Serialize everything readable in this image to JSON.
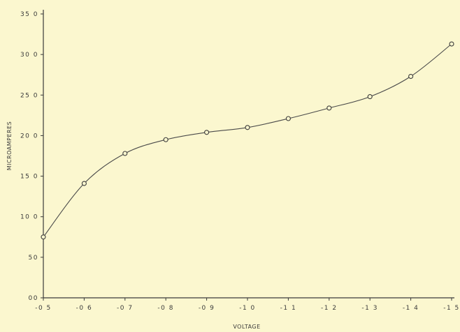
{
  "chart_data": {
    "type": "line",
    "xlabel": "VOLTAGE",
    "ylabel": "MICROAMPERES",
    "xlim": [
      -0.5,
      -1.5
    ],
    "ylim": [
      0,
      350
    ],
    "x_ticks": [
      -0.5,
      -0.6,
      -0.7,
      -0.8,
      -0.9,
      -1.0,
      -1.1,
      -1.2,
      -1.3,
      -1.4,
      -1.5
    ],
    "x_tick_labels": [
      "-0 5",
      "-0 6",
      "-0 7",
      "-0 8",
      "-0 9",
      "-1 0",
      "-1 1",
      "-1 2",
      "-1 3",
      "-1 4",
      "-1 5"
    ],
    "y_ticks": [
      0,
      50,
      100,
      150,
      200,
      250,
      300,
      350
    ],
    "y_tick_labels": [
      "00",
      "50",
      "10 0",
      "15 0",
      "20 0",
      "25 0",
      "30 0",
      "35 0"
    ],
    "grid": false,
    "series": [
      {
        "x": [
          -0.5,
          -0.6,
          -0.7,
          -0.8,
          -0.9,
          -1.0,
          -1.1,
          -1.2,
          -1.3,
          -1.4,
          -1.5
        ],
        "y": [
          75,
          141,
          178,
          195,
          204,
          210,
          221,
          234,
          248,
          273,
          313
        ]
      }
    ]
  }
}
